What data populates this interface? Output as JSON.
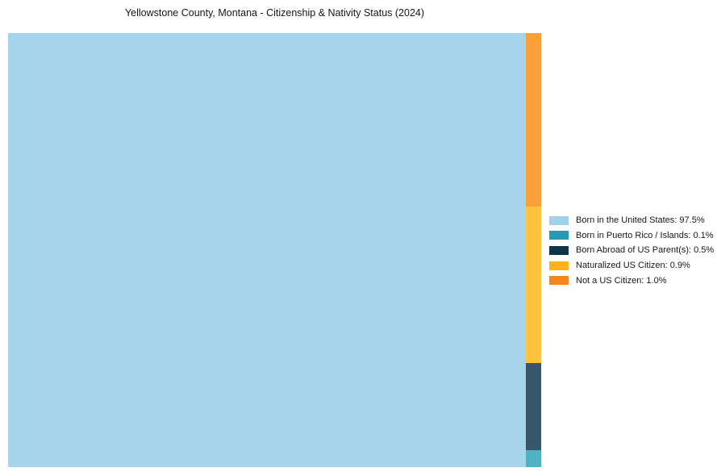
{
  "title": "Yellowstone County, Montana - Citizenship & Nativity Status (2024)",
  "chart_data": {
    "type": "treemap",
    "title": "Yellowstone County, Montana - Citizenship & Nativity Status (2024)",
    "value_suffix": "%",
    "legend_position": "right",
    "layout_note": "largest category fills left block; remaining categories stacked in thin right strip, largest at top",
    "segments": [
      {
        "label": "Born in the United States",
        "value": "97.5",
        "fill": "#a5d4eb",
        "swatch": "#9fd1e8"
      },
      {
        "label": "Born in Puerto Rico / Islands",
        "value": "0.1",
        "fill": "#4fb1c2",
        "swatch": "#2898b5"
      },
      {
        "label": "Born Abroad of US Parent(s)",
        "value": "0.5",
        "fill": "#36566b",
        "swatch": "#0e3449"
      },
      {
        "label": "Naturalized US Citizen",
        "value": "0.9",
        "fill": "#fdc33c",
        "swatch": "#feb418"
      },
      {
        "label": "Not a US Citizen",
        "value": "1.0",
        "fill": "#f8a138",
        "swatch": "#f5851d"
      }
    ],
    "background_color": "#ffffff",
    "title_color": "#161616",
    "legend_text_color": "#161616"
  }
}
